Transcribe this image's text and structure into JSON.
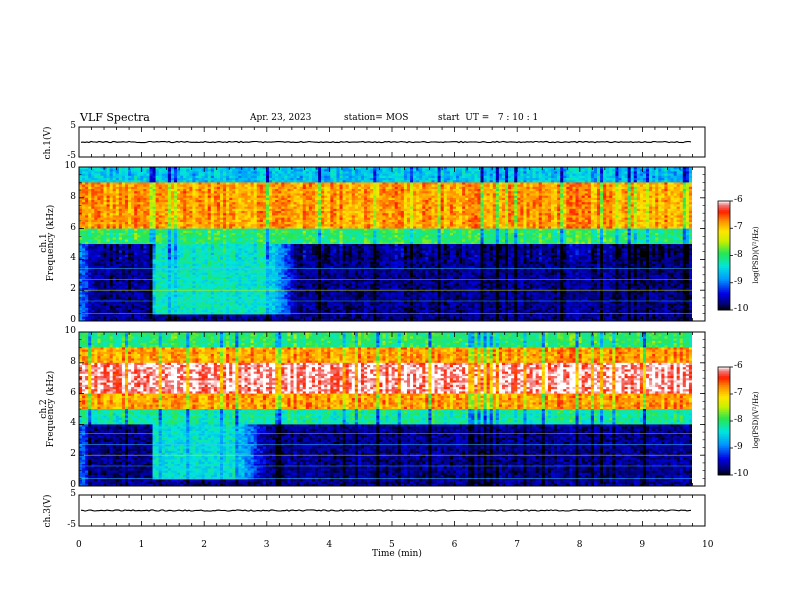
{
  "header": {
    "title": "VLF Spectra",
    "date": "Apr. 23, 2023",
    "station": "station= MOS",
    "start": "start  UT =   7 : 10 : 1"
  },
  "chart_data": [
    {
      "type": "line",
      "panel": "ch1-voltage",
      "ylabel": "ch.1(V)",
      "ylim": [
        -5,
        5
      ],
      "yticks": [
        "5",
        "-5"
      ],
      "xlim": [
        0,
        10
      ],
      "description_values": {
        "level": 0
      }
    },
    {
      "type": "heatmap",
      "panel": "ch1-spectrogram",
      "ylabel": "ch.1\nFrequency (kHz)",
      "ylabel_line1": "ch.1",
      "ylabel_line2": "Frequency (kHz)",
      "ylim": [
        0,
        10
      ],
      "yticks": [
        "0",
        "2",
        "4",
        "6",
        "8",
        "10"
      ],
      "xlim": [
        0,
        9.8
      ],
      "colorbar": {
        "label": "log(PSD)(V²/Hz)",
        "range": [
          -10,
          -6
        ],
        "ticks": [
          "-6",
          "-7",
          "-8",
          "-9",
          "-10"
        ]
      },
      "bands": [
        {
          "f_low": 9.0,
          "f_high": 10.0,
          "level": -8.6
        },
        {
          "f_low": 6.0,
          "f_high": 9.0,
          "level": -6.8
        },
        {
          "f_low": 5.0,
          "f_high": 6.0,
          "level": -8.0
        },
        {
          "f_low": 0.0,
          "f_high": 5.0,
          "level": -9.7
        }
      ],
      "features": [
        {
          "t_start": 0.0,
          "t_end": 0.25,
          "f_low": 0,
          "f_high": 5,
          "level": -8.2
        },
        {
          "t_start": 1.2,
          "t_end": 3.5,
          "f_low": 0.5,
          "f_high": 5,
          "level": -8.3
        }
      ]
    },
    {
      "type": "heatmap",
      "panel": "ch2-spectrogram",
      "ylabel_line1": "ch.2",
      "ylabel_line2": "Frequency (kHz)",
      "ylim": [
        0,
        10
      ],
      "yticks": [
        "0",
        "2",
        "4",
        "6",
        "8",
        "10"
      ],
      "xlim": [
        0,
        9.8
      ],
      "colorbar": {
        "label": "log(PSD)(V²/Hz)",
        "range": [
          -10,
          -6
        ],
        "ticks": [
          "-6",
          "-7",
          "-8",
          "-9",
          "-10"
        ]
      },
      "bands": [
        {
          "f_low": 9.0,
          "f_high": 10.0,
          "level": -8.0
        },
        {
          "f_low": 8.0,
          "f_high": 9.0,
          "level": -6.8
        },
        {
          "f_low": 6.0,
          "f_high": 8.0,
          "level": -6.1
        },
        {
          "f_low": 5.0,
          "f_high": 6.0,
          "level": -6.8
        },
        {
          "f_low": 4.0,
          "f_high": 5.0,
          "level": -8.2
        },
        {
          "f_low": 0.0,
          "f_high": 4.0,
          "level": -9.7
        }
      ],
      "features": [
        {
          "t_start": 0.0,
          "t_end": 0.25,
          "f_low": 0,
          "f_high": 4,
          "level": -8.2
        },
        {
          "t_start": 1.2,
          "t_end": 3.0,
          "f_low": 0.5,
          "f_high": 4,
          "level": -8.4
        }
      ]
    },
    {
      "type": "line",
      "panel": "ch3-voltage",
      "ylabel": "ch.3(V)",
      "ylim": [
        -5,
        5
      ],
      "yticks": [
        "5",
        "-5"
      ],
      "xlim": [
        0,
        10
      ],
      "xlabel": "Time  (min)",
      "xticks": [
        "0",
        "1",
        "2",
        "3",
        "4",
        "5",
        "6",
        "7",
        "8",
        "9",
        "10"
      ],
      "description_values": {
        "level": 0
      }
    }
  ]
}
